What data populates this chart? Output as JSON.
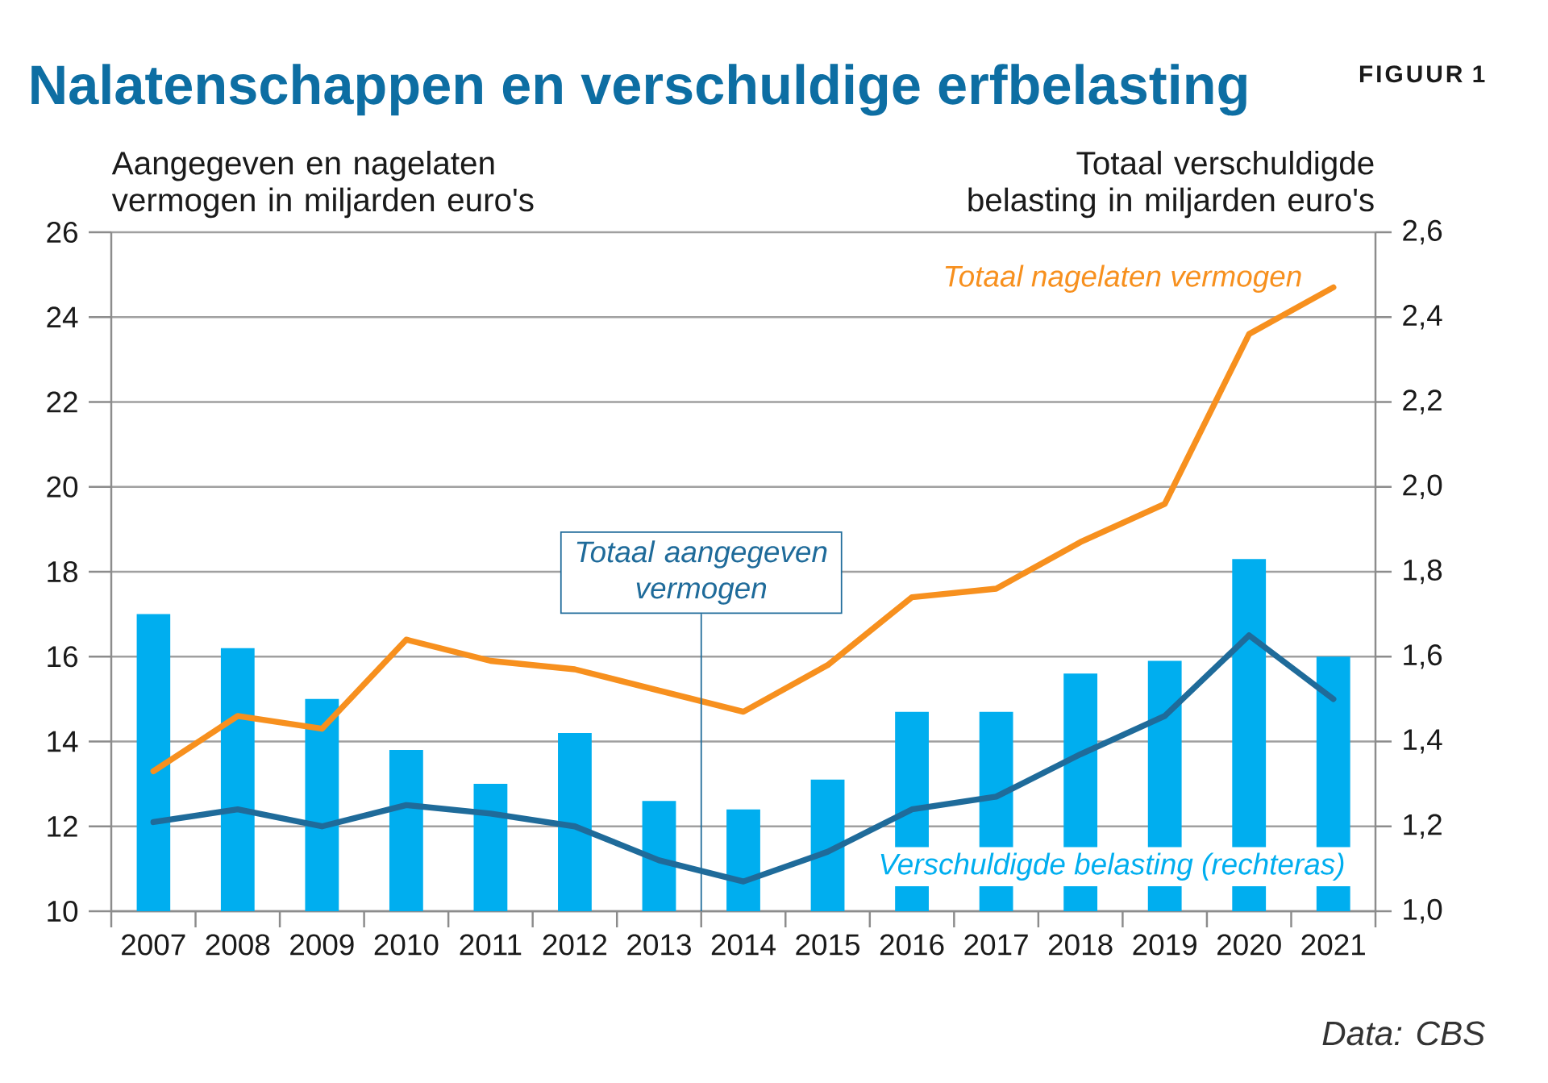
{
  "chart_data": {
    "type": "bar",
    "title": "Nalatenschappen en verschuldige erfbelasting",
    "ylabel": "Aangegeven en nagelaten vermogen in miljarden euro's",
    "y2label": "Totaal verschuldigde belasting in miljarden euro's",
    "annotations": [
      "FIGUUR 1",
      "Data: CBS"
    ],
    "categories": [
      "2007",
      "2008",
      "2009",
      "2010",
      "2011",
      "2012",
      "2013",
      "2014",
      "2015",
      "2016",
      "2017",
      "2018",
      "2019",
      "2020",
      "2021"
    ],
    "series": [
      {
        "name": "Verschuldigde belasting (rechteras)",
        "axis": "y2",
        "color": "#00aeef",
        "values": [
          1.7,
          1.62,
          1.5,
          1.38,
          1.3,
          1.42,
          1.26,
          1.24,
          1.31,
          1.47,
          1.47,
          1.56,
          1.59,
          1.83,
          1.6
        ]
      },
      {
        "name": "Totaal nagelaten vermogen",
        "type": "line",
        "color": "#f7901e",
        "values": [
          13.3,
          14.6,
          14.3,
          16.4,
          15.9,
          15.7,
          15.2,
          14.7,
          15.8,
          17.4,
          17.6,
          18.7,
          19.6,
          23.6,
          24.7
        ]
      },
      {
        "name": "Totaal aangegeven vermogen",
        "type": "line",
        "color": "#1f6b9a",
        "values": [
          12.1,
          12.4,
          12.0,
          12.5,
          12.3,
          12.0,
          11.2,
          10.7,
          11.4,
          12.4,
          12.7,
          13.7,
          14.6,
          16.5,
          15.0
        ]
      }
    ],
    "ylim": [
      10,
      26
    ],
    "yticks": [
      10,
      12,
      14,
      16,
      18,
      20,
      22,
      24,
      26
    ],
    "y2lim": [
      1.0,
      2.6
    ],
    "y2ticks": [
      {
        "value": 1.0,
        "label": "1,0"
      },
      {
        "value": 1.2,
        "label": "1,2"
      },
      {
        "value": 1.4,
        "label": "1,4"
      },
      {
        "value": 1.6,
        "label": "1,6"
      },
      {
        "value": 1.8,
        "label": "1,8"
      },
      {
        "value": 2.0,
        "label": "2,0"
      },
      {
        "value": 2.2,
        "label": "2,2"
      },
      {
        "value": 2.4,
        "label": "2,4"
      },
      {
        "value": 2.6,
        "label": "2,6"
      }
    ],
    "grid": "y"
  }
}
